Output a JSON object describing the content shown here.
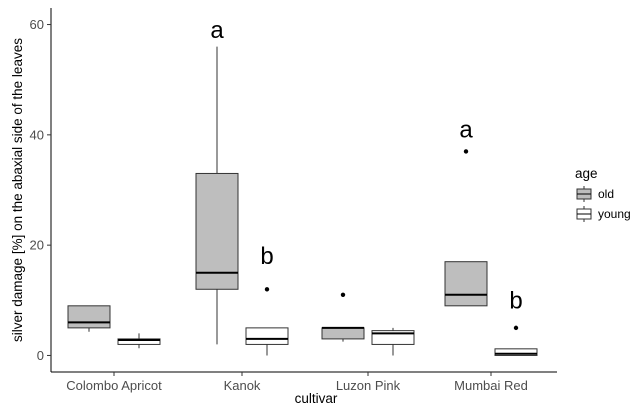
{
  "chart_data": {
    "type": "boxplot",
    "xlabel": "cultivar",
    "ylabel": "silver damage [%] on the abaxial side of the leaves",
    "categories": [
      "Colombo Apricot",
      "Kanok",
      "Luzon Pink",
      "Mumbai Red"
    ],
    "ylim": [
      -3,
      63
    ],
    "yticks": [
      0,
      20,
      40,
      60
    ],
    "grid": false,
    "legend": {
      "title": "age",
      "position": "right",
      "entries": [
        {
          "label": "old",
          "fill": "#bebebe"
        },
        {
          "label": "young",
          "fill": "#ffffff"
        }
      ]
    },
    "series": [
      {
        "name": "old",
        "fill": "#bebebe",
        "boxes": [
          {
            "category": "Colombo Apricot",
            "whisker_low": 4.3,
            "q1": 5,
            "median": 6,
            "q3": 9,
            "whisker_high": 9,
            "outliers": []
          },
          {
            "category": "Kanok",
            "whisker_low": 2,
            "q1": 12,
            "median": 15,
            "q3": 33,
            "whisker_high": 56,
            "outliers": []
          },
          {
            "category": "Luzon Pink",
            "whisker_low": 2.5,
            "q1": 3,
            "median": 5,
            "q3": 5,
            "whisker_high": 5,
            "outliers": [
              11
            ]
          },
          {
            "category": "Mumbai Red",
            "whisker_low": 9,
            "q1": 9,
            "median": 11,
            "q3": 17,
            "whisker_high": 17,
            "outliers": [
              37
            ]
          }
        ]
      },
      {
        "name": "young",
        "fill": "#ffffff",
        "boxes": [
          {
            "category": "Colombo Apricot",
            "whisker_low": 1.3,
            "q1": 2,
            "median": 2.8,
            "q3": 3,
            "whisker_high": 4,
            "outliers": []
          },
          {
            "category": "Kanok",
            "whisker_low": 0,
            "q1": 2,
            "median": 3,
            "q3": 5,
            "whisker_high": 5,
            "outliers": [
              12
            ]
          },
          {
            "category": "Luzon Pink",
            "whisker_low": 0,
            "q1": 2,
            "median": 4,
            "q3": 4.5,
            "whisker_high": 5,
            "outliers": []
          },
          {
            "category": "Mumbai Red",
            "whisker_low": 0,
            "q1": 0,
            "median": 0.3,
            "q3": 1.2,
            "whisker_high": 1.2,
            "outliers": [
              5
            ]
          }
        ]
      }
    ],
    "annotations": [
      {
        "text": "a",
        "category": "Kanok",
        "series": "old",
        "y": 59
      },
      {
        "text": "b",
        "category": "Kanok",
        "series": "young",
        "y": 18
      },
      {
        "text": "a",
        "category": "Mumbai Red",
        "series": "old",
        "y": 41
      },
      {
        "text": "b",
        "category": "Mumbai Red",
        "series": "young",
        "y": 10
      }
    ]
  }
}
